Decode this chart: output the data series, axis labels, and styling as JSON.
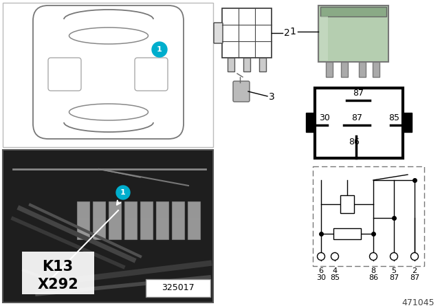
{
  "bg_color": "#ffffff",
  "cyan_color": "#00AECD",
  "relay_green": "#b5ceb0",
  "relay_green_dark": "#8aaa86",
  "relay_green_light": "#c8dcc4",
  "photo_bg": "#252525",
  "photo_border": "#555555",
  "K_label": "K13",
  "X_label": "X292",
  "photo_label": "325017",
  "doc_number": "471045",
  "item1": "1",
  "item2": "2",
  "item3": "3",
  "pin_87_top": "87",
  "pin_30": "30",
  "pin_87_mid": "87",
  "pin_85": "85",
  "pin_86": "86",
  "sch_row1": [
    "6",
    "4",
    "8",
    "5",
    "2"
  ],
  "sch_row2": [
    "30",
    "85",
    "86",
    "87",
    "87"
  ]
}
